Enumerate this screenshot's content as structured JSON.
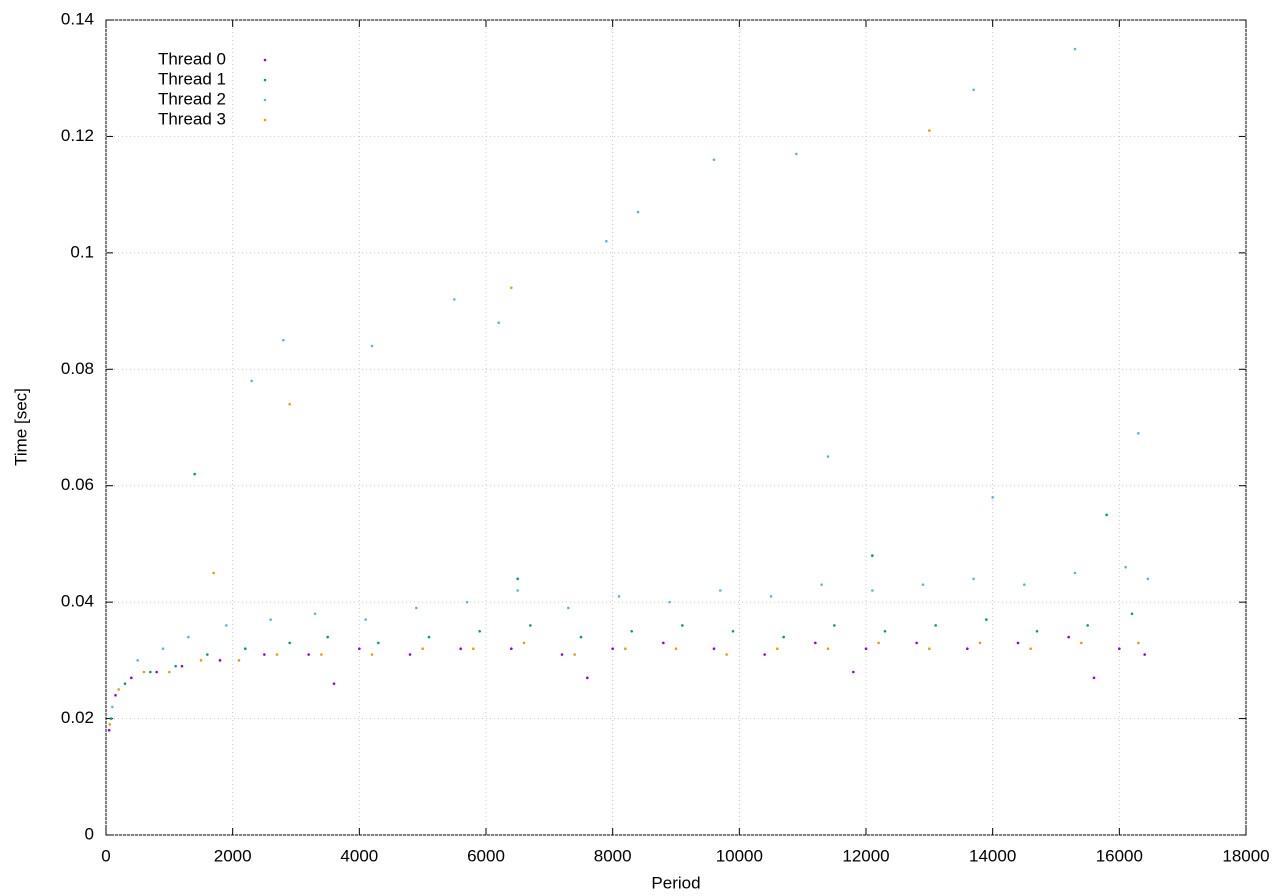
{
  "chart_data": {
    "type": "scatter",
    "x_label": "Period",
    "y_label": "Time [sec]",
    "xlim": [
      0,
      18000
    ],
    "ylim": [
      0,
      0.14
    ],
    "xticks": [
      0,
      2000,
      4000,
      6000,
      8000,
      10000,
      12000,
      14000,
      16000,
      18000
    ],
    "yticks": [
      0,
      0.02,
      0.04,
      0.06,
      0.08,
      0.1,
      0.12,
      0.14
    ],
    "grid": true,
    "legend": "top-left",
    "series": [
      {
        "name": "Thread 0",
        "color": "#9400d3",
        "x": [
          50,
          150,
          400,
          800,
          1200,
          1800,
          2500,
          3200,
          4000,
          4800,
          5600,
          6400,
          7200,
          8000,
          8800,
          9600,
          10400,
          11200,
          12000,
          12800,
          13600,
          14400,
          15200,
          16000,
          16400,
          3600,
          7600,
          11800,
          15600
        ],
        "values": [
          0.018,
          0.024,
          0.027,
          0.028,
          0.029,
          0.03,
          0.031,
          0.031,
          0.032,
          0.031,
          0.032,
          0.032,
          0.031,
          0.032,
          0.033,
          0.032,
          0.031,
          0.033,
          0.032,
          0.033,
          0.032,
          0.033,
          0.034,
          0.032,
          0.031,
          0.026,
          0.027,
          0.028,
          0.027
        ]
      },
      {
        "name": "Thread 1",
        "color": "#009e73",
        "x": [
          80,
          300,
          700,
          1100,
          1600,
          2200,
          2900,
          3500,
          4300,
          5100,
          5900,
          6700,
          7500,
          8300,
          9100,
          9900,
          10700,
          11500,
          12300,
          13100,
          13900,
          14700,
          15500,
          16200,
          1400,
          6500,
          12100,
          15800
        ],
        "values": [
          0.02,
          0.026,
          0.028,
          0.029,
          0.031,
          0.032,
          0.033,
          0.034,
          0.033,
          0.034,
          0.035,
          0.036,
          0.034,
          0.035,
          0.036,
          0.035,
          0.034,
          0.036,
          0.035,
          0.036,
          0.037,
          0.035,
          0.036,
          0.038,
          0.062,
          0.044,
          0.048,
          0.055
        ]
      },
      {
        "name": "Thread 2",
        "color": "#56b4e9",
        "x": [
          100,
          500,
          900,
          1300,
          1900,
          2600,
          3300,
          4100,
          4900,
          5700,
          6500,
          7300,
          8100,
          8900,
          9700,
          10500,
          11300,
          12100,
          12900,
          13700,
          14500,
          15300,
          16100,
          16450,
          15300,
          13700,
          10900,
          9600,
          8400,
          7900,
          5500,
          4200,
          2800,
          2300,
          6200,
          11400,
          14000,
          16300
        ],
        "values": [
          0.022,
          0.03,
          0.032,
          0.034,
          0.036,
          0.037,
          0.038,
          0.037,
          0.039,
          0.04,
          0.042,
          0.039,
          0.041,
          0.04,
          0.042,
          0.041,
          0.043,
          0.042,
          0.043,
          0.044,
          0.043,
          0.045,
          0.046,
          0.044,
          0.135,
          0.128,
          0.117,
          0.116,
          0.107,
          0.102,
          0.092,
          0.084,
          0.085,
          0.078,
          0.088,
          0.065,
          0.058,
          0.069
        ]
      },
      {
        "name": "Thread 3",
        "color": "#e69f00",
        "x": [
          60,
          200,
          600,
          1000,
          1500,
          2100,
          2700,
          3400,
          4200,
          5000,
          5800,
          6600,
          7400,
          8200,
          9000,
          9800,
          10600,
          11400,
          12200,
          13000,
          13800,
          14600,
          15400,
          16300,
          2900,
          6400,
          13000,
          1700
        ],
        "values": [
          0.019,
          0.025,
          0.028,
          0.028,
          0.03,
          0.03,
          0.031,
          0.031,
          0.031,
          0.032,
          0.032,
          0.033,
          0.031,
          0.032,
          0.032,
          0.031,
          0.032,
          0.032,
          0.033,
          0.032,
          0.033,
          0.032,
          0.033,
          0.033,
          0.074,
          0.094,
          0.121,
          0.045
        ]
      }
    ]
  }
}
